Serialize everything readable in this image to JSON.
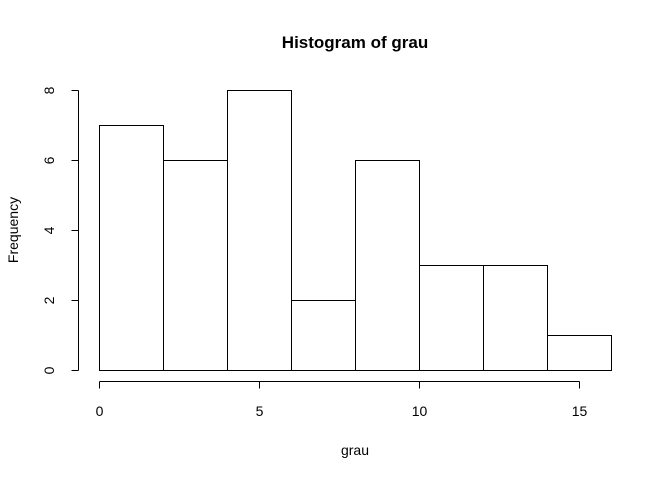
{
  "chart_data": {
    "type": "bar",
    "title": "Histogram of grau",
    "xlabel": "grau",
    "ylabel": "Frequency",
    "bins": [
      {
        "from": 0,
        "to": 2,
        "count": 7
      },
      {
        "from": 2,
        "to": 4,
        "count": 6
      },
      {
        "from": 4,
        "to": 6,
        "count": 8
      },
      {
        "from": 6,
        "to": 8,
        "count": 2
      },
      {
        "from": 8,
        "to": 10,
        "count": 6
      },
      {
        "from": 10,
        "to": 12,
        "count": 3
      },
      {
        "from": 12,
        "to": 14,
        "count": 3
      },
      {
        "from": 14,
        "to": 16,
        "count": 1
      }
    ],
    "xlim": [
      0,
      16
    ],
    "ylim": [
      0,
      8
    ],
    "x_ticks": [
      0,
      5,
      10,
      15
    ],
    "y_ticks": [
      0,
      2,
      4,
      6,
      8
    ],
    "grid": false,
    "colors": {
      "bar_fill": "#ffffff",
      "bar_stroke": "#000000"
    }
  }
}
